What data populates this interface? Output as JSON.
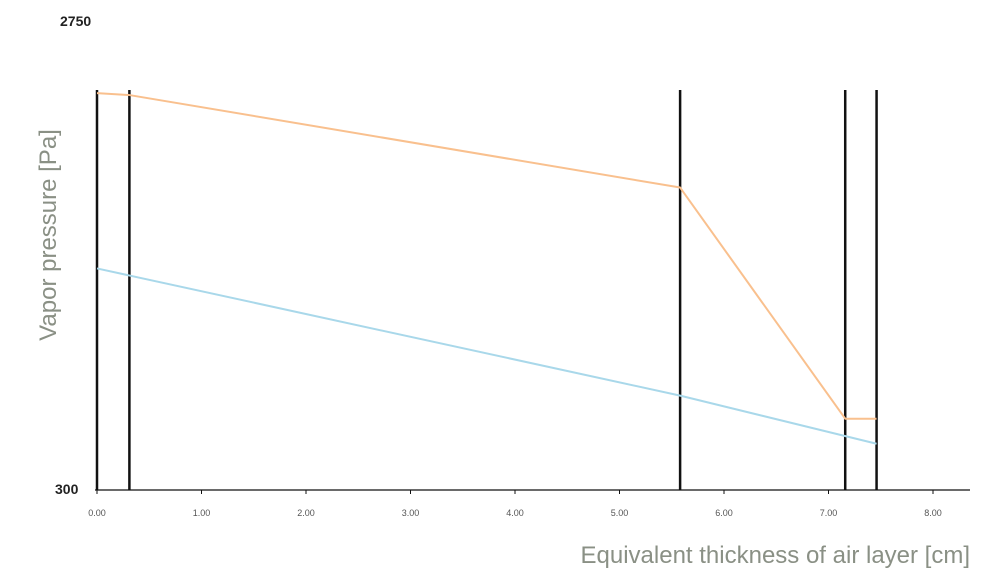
{
  "chart_data": {
    "type": "line",
    "title": "",
    "xlabel": "Equivalent thickness of air layer [cm]",
    "ylabel": "Vapor pressure [Pa]",
    "xlim": [
      0,
      8.4
    ],
    "ylim": [
      300,
      2750
    ],
    "ytick_labels": [
      "2750",
      "300"
    ],
    "xticks": [
      0,
      1,
      2,
      3,
      4,
      5,
      6,
      7,
      8
    ],
    "xtick_labels": [
      "0.00",
      "1.00",
      "2.00",
      "3.00",
      "4.00",
      "5.00",
      "6.00",
      "7.00",
      "8.00"
    ],
    "grid": false,
    "layer_boundaries": [
      0,
      0.31,
      5.58,
      7.16,
      7.46
    ],
    "series": [
      {
        "color": "#f9c08e",
        "x": [
          0,
          0.31,
          5.58,
          7.16,
          7.46
        ],
        "y": [
          2360,
          2350,
          1870,
          670,
          670
        ]
      },
      {
        "color": "#a9d8ea",
        "x": [
          0,
          5.58,
          7.46
        ],
        "y": [
          1450,
          790,
          540
        ]
      }
    ]
  }
}
